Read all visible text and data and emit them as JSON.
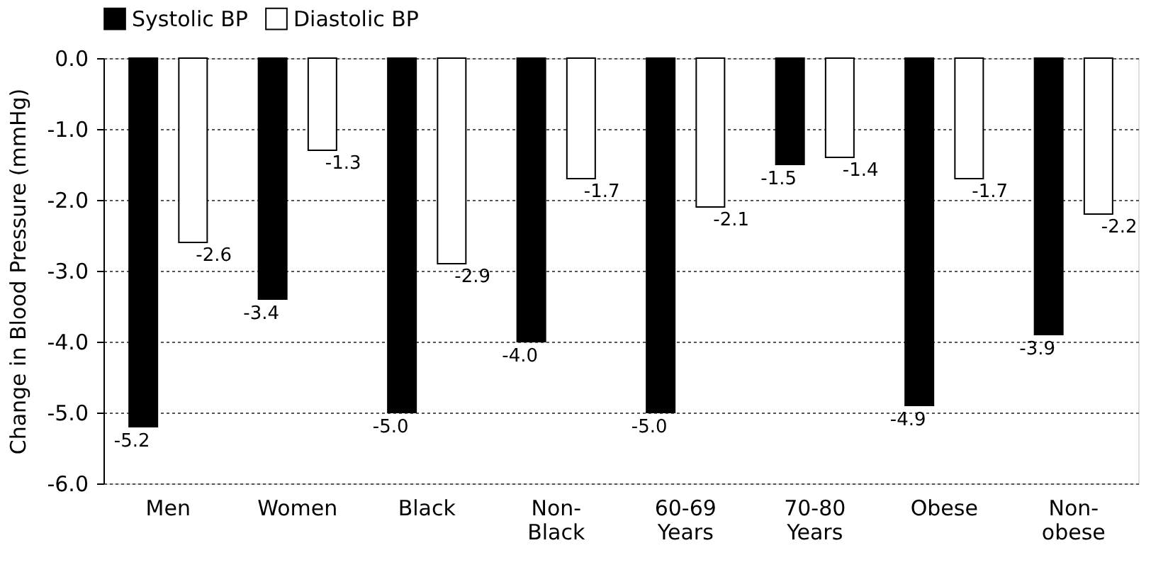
{
  "chart_data": {
    "type": "bar",
    "ylabel": "Change in Blood Pressure (mmHg)",
    "categories": [
      "Men",
      "Women",
      "Black",
      "Non-\nBlack",
      "60-69\nYears",
      "70-80\nYears",
      "Obese",
      "Non-\nobese"
    ],
    "series": [
      {
        "name": "Systolic BP",
        "color": "#000000",
        "values": [
          -5.2,
          -3.4,
          -5.0,
          -4.0,
          -5.0,
          -1.5,
          -4.9,
          -3.9
        ],
        "value_labels": [
          "-5.2",
          "-3.4",
          "-5.0",
          "-4.0",
          "-5.0",
          "-1.5",
          "-4.9",
          "-3.9"
        ]
      },
      {
        "name": "Diastolic BP",
        "color": "#ffffff",
        "values": [
          -2.6,
          -1.3,
          -2.9,
          -1.7,
          -2.1,
          -1.4,
          -1.7,
          -2.2
        ],
        "value_labels": [
          "-2.6",
          "-1.3",
          "-2.9",
          "-1.7",
          "-2.1",
          "-1.4",
          "-1.7",
          "-2.2"
        ]
      }
    ],
    "ylim": [
      -6.0,
      0.0
    ],
    "yticks": [
      {
        "value": 0,
        "label": "0.0"
      },
      {
        "value": -1,
        "label": "-1.0"
      },
      {
        "value": -2,
        "label": "-2.0"
      },
      {
        "value": -3,
        "label": "-3.0"
      },
      {
        "value": -4,
        "label": "-4.0"
      },
      {
        "value": -5,
        "label": "-5.0"
      },
      {
        "value": -6,
        "label": "-6.0"
      }
    ],
    "grid": "y",
    "legend": "top"
  }
}
